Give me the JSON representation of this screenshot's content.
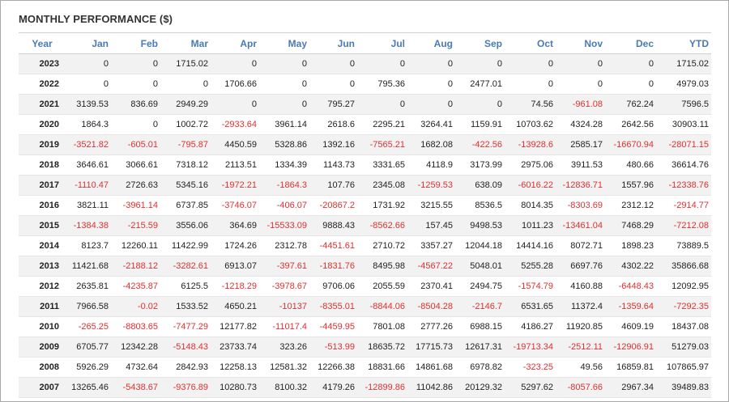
{
  "title": "MONTHLY PERFORMANCE ($)",
  "colors": {
    "header": "#4a7ab5",
    "negative": "#e03030",
    "stripe": "#f2f2f2"
  },
  "columns": [
    "Year",
    "Jan",
    "Feb",
    "Mar",
    "Apr",
    "May",
    "Jun",
    "Jul",
    "Aug",
    "Sep",
    "Oct",
    "Nov",
    "Dec",
    "YTD"
  ],
  "rows": [
    [
      "2023",
      "0",
      "0",
      "1715.02",
      "0",
      "0",
      "0",
      "0",
      "0",
      "0",
      "0",
      "0",
      "0",
      "1715.02"
    ],
    [
      "2022",
      "0",
      "0",
      "0",
      "1706.66",
      "0",
      "0",
      "795.36",
      "0",
      "2477.01",
      "0",
      "0",
      "0",
      "4979.03"
    ],
    [
      "2021",
      "3139.53",
      "836.69",
      "2949.29",
      "0",
      "0",
      "795.27",
      "0",
      "0",
      "0",
      "74.56",
      "-961.08",
      "762.24",
      "7596.5"
    ],
    [
      "2020",
      "1864.3",
      "0",
      "1002.72",
      "-2933.64",
      "3961.14",
      "2618.6",
      "2295.21",
      "3264.41",
      "1159.91",
      "10703.62",
      "4324.28",
      "2642.56",
      "30903.11"
    ],
    [
      "2019",
      "-3521.82",
      "-605.01",
      "-795.87",
      "4450.59",
      "5328.86",
      "1392.16",
      "-7565.21",
      "1682.08",
      "-422.56",
      "-13928.6",
      "2585.17",
      "-16670.94",
      "-28071.15"
    ],
    [
      "2018",
      "3646.61",
      "3066.61",
      "7318.12",
      "2113.51",
      "1334.39",
      "1143.73",
      "3331.65",
      "4118.9",
      "3173.99",
      "2975.06",
      "3911.53",
      "480.66",
      "36614.76"
    ],
    [
      "2017",
      "-1110.47",
      "2726.63",
      "5345.16",
      "-1972.21",
      "-1864.3",
      "107.76",
      "2345.08",
      "-1259.53",
      "638.09",
      "-6016.22",
      "-12836.71",
      "1557.96",
      "-12338.76"
    ],
    [
      "2016",
      "3821.11",
      "-3961.14",
      "6737.85",
      "-3746.07",
      "-406.07",
      "-20867.2",
      "1731.92",
      "3215.55",
      "8536.5",
      "8014.35",
      "-8303.69",
      "2312.12",
      "-2914.77"
    ],
    [
      "2015",
      "-1384.38",
      "-215.59",
      "3556.06",
      "364.69",
      "-15533.09",
      "9888.43",
      "-8562.66",
      "157.45",
      "9498.53",
      "1011.23",
      "-13461.04",
      "7468.29",
      "-7212.08"
    ],
    [
      "2014",
      "8123.7",
      "12260.11",
      "11422.99",
      "1724.26",
      "2312.78",
      "-4451.61",
      "2710.72",
      "3357.27",
      "12044.18",
      "14414.16",
      "8072.71",
      "1898.23",
      "73889.5"
    ],
    [
      "2013",
      "11421.68",
      "-2188.12",
      "-3282.61",
      "6913.07",
      "-397.61",
      "-1831.76",
      "8495.98",
      "-4567.22",
      "5048.01",
      "5255.28",
      "6697.76",
      "4302.22",
      "35866.68"
    ],
    [
      "2012",
      "2635.81",
      "-4235.87",
      "6125.5",
      "-1218.29",
      "-3978.67",
      "9706.06",
      "2055.59",
      "2370.41",
      "2494.75",
      "-1574.79",
      "4160.88",
      "-6448.43",
      "12092.95"
    ],
    [
      "2011",
      "7966.58",
      "-0.02",
      "1533.52",
      "4650.21",
      "-10137",
      "-8355.01",
      "-8844.06",
      "-8504.28",
      "-2146.7",
      "6531.65",
      "11372.4",
      "-1359.64",
      "-7292.35"
    ],
    [
      "2010",
      "-265.25",
      "-8803.65",
      "-7477.29",
      "12177.82",
      "-11017.4",
      "-4459.95",
      "7801.08",
      "2777.26",
      "6988.15",
      "4186.27",
      "11920.85",
      "4609.19",
      "18437.08"
    ],
    [
      "2009",
      "6705.77",
      "12342.28",
      "-5148.43",
      "23733.74",
      "323.26",
      "-513.99",
      "18635.72",
      "17715.73",
      "12617.31",
      "-19713.34",
      "-2512.11",
      "-12906.91",
      "51279.03"
    ],
    [
      "2008",
      "5926.29",
      "4732.64",
      "2842.93",
      "12258.13",
      "12581.32",
      "12266.38",
      "18831.66",
      "14861.68",
      "6978.82",
      "-323.25",
      "49.56",
      "16859.81",
      "107865.97"
    ],
    [
      "2007",
      "13265.46",
      "-5438.67",
      "-9376.89",
      "10280.73",
      "8100.32",
      "4179.26",
      "-12899.86",
      "11042.86",
      "20129.32",
      "5297.62",
      "-8057.66",
      "2967.34",
      "39489.83"
    ]
  ]
}
